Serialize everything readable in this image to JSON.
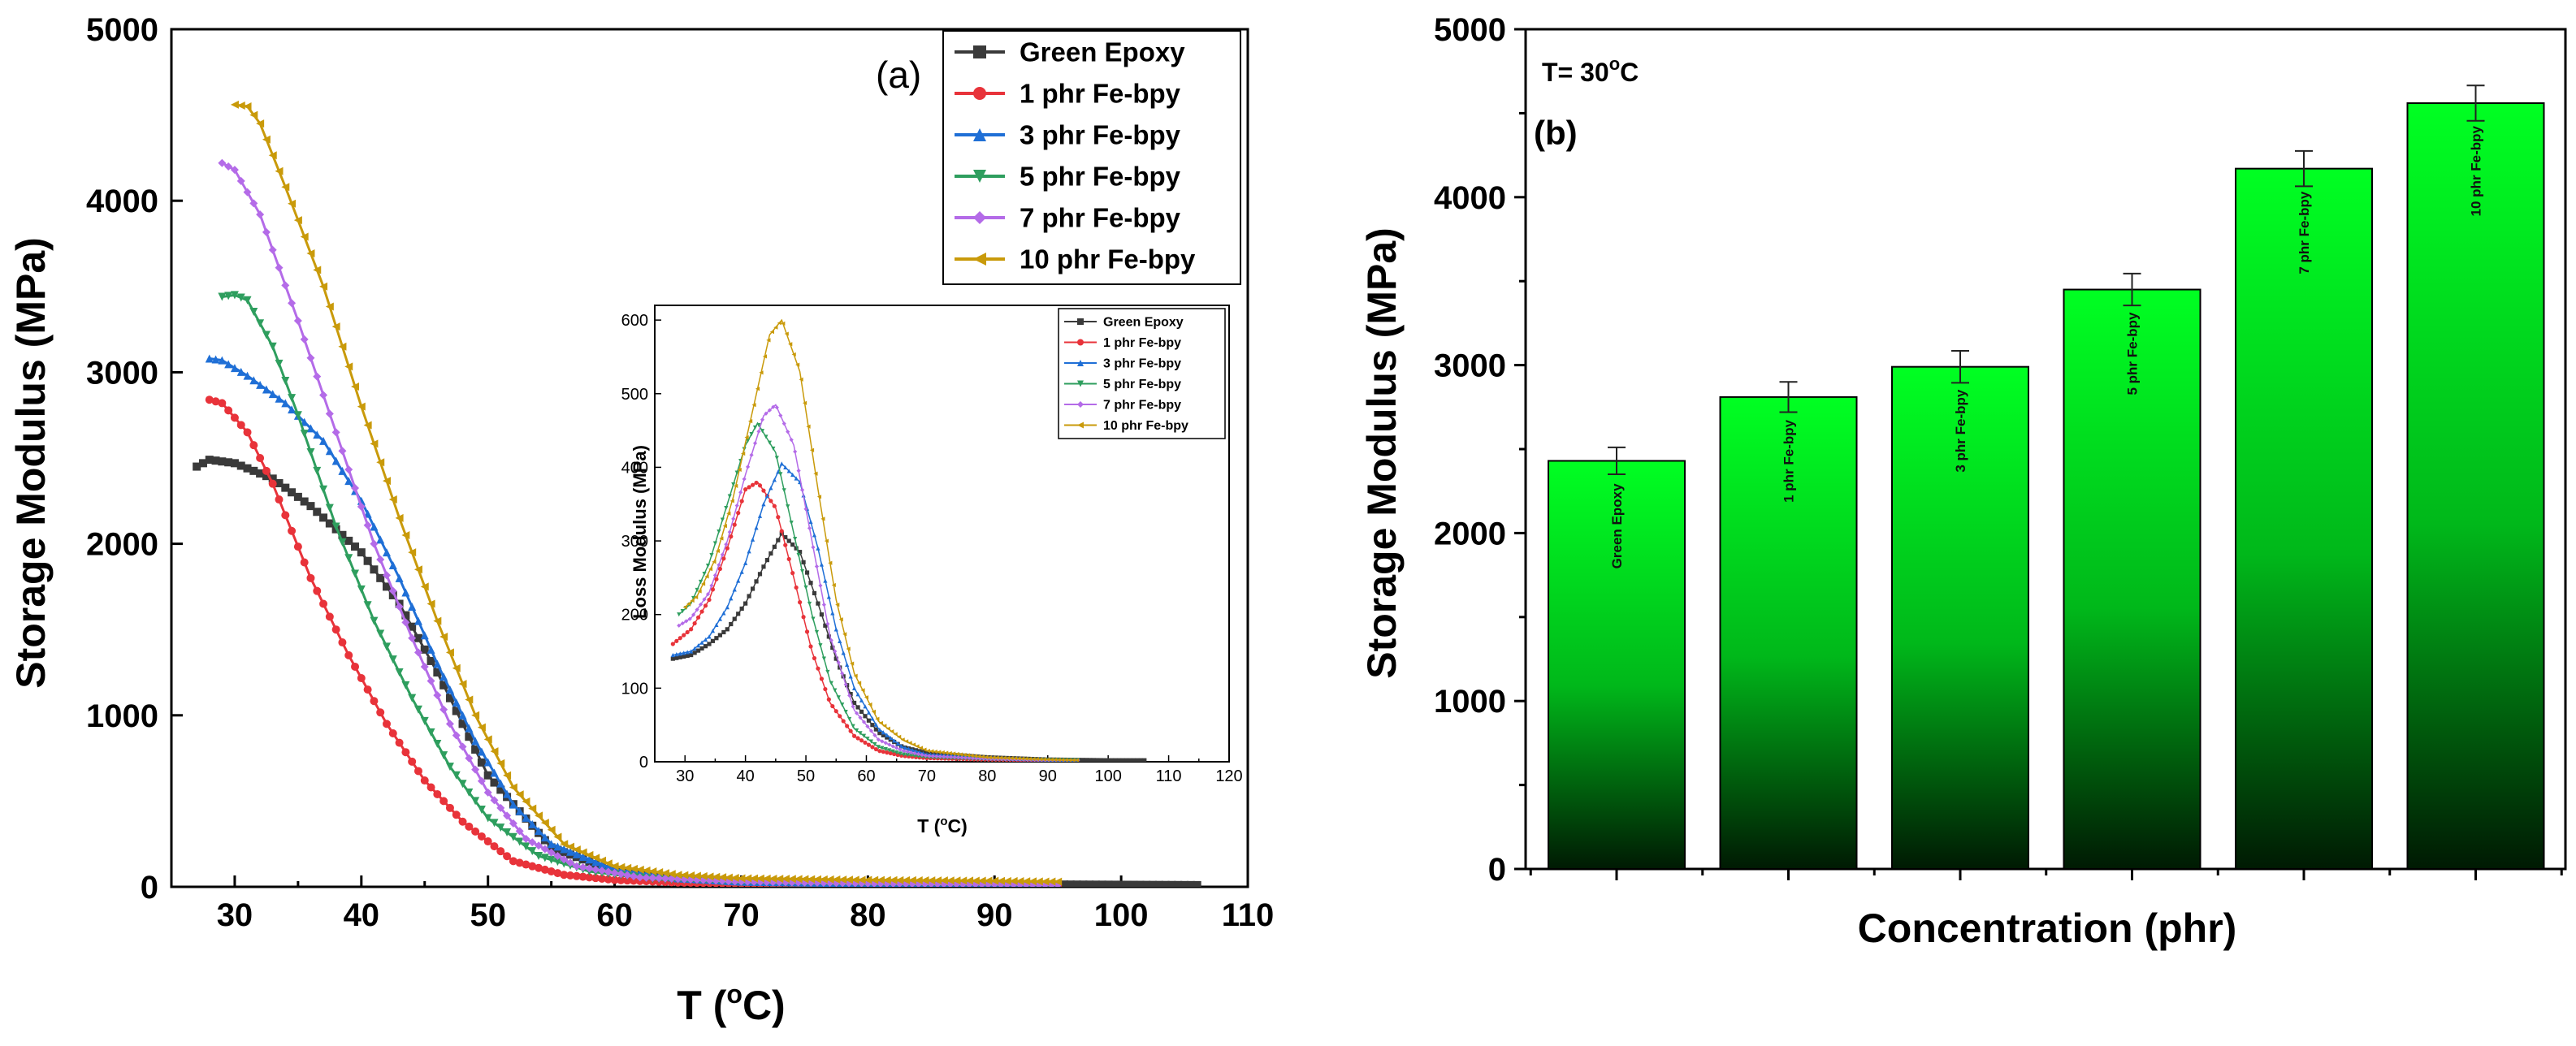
{
  "chart_data": [
    {
      "id": "a",
      "type": "line",
      "panel_label": "(a)",
      "xlabel": "T (",
      "xlabel_unit": "C)",
      "ylabel": "Storage Modulus (MPa)",
      "xlim": [
        25,
        110
      ],
      "ylim": [
        0,
        5000
      ],
      "xticks": [
        30,
        40,
        50,
        60,
        70,
        80,
        90,
        100,
        110
      ],
      "xtick_labels": [
        "30",
        "40",
        "50",
        "60",
        "70",
        "80",
        "90",
        "100",
        "110"
      ],
      "yticks": [
        0,
        1000,
        2000,
        3000,
        4000,
        5000
      ],
      "legend_position": "top-right",
      "series": [
        {
          "name": "Green Epoxy",
          "color": "#3a3a3a",
          "marker": "square",
          "x": [
            27,
            28,
            30,
            33,
            36,
            40,
            43,
            46,
            50,
            55,
            60,
            65,
            70,
            80,
            90,
            100,
            106
          ],
          "y": [
            2450,
            2490,
            2470,
            2380,
            2220,
            1950,
            1650,
            1250,
            650,
            230,
            90,
            45,
            30,
            20,
            15,
            12,
            10
          ]
        },
        {
          "name": "1 phr Fe-bpy",
          "color": "#e8333a",
          "marker": "circle",
          "x": [
            28,
            29,
            31,
            33,
            36,
            39,
            42,
            45,
            48,
            52,
            56,
            60,
            65,
            70,
            80,
            90,
            95
          ],
          "y": [
            2840,
            2820,
            2650,
            2350,
            1800,
            1350,
            950,
            620,
            380,
            150,
            70,
            40,
            25,
            20,
            15,
            12,
            10
          ]
        },
        {
          "name": "3 phr Fe-bpy",
          "color": "#1f6fd6",
          "marker": "triangle-up",
          "x": [
            28,
            29,
            31,
            34,
            37,
            40,
            43,
            46,
            49,
            52,
            55,
            60,
            65,
            70,
            80,
            90,
            95
          ],
          "y": [
            3080,
            3070,
            2980,
            2820,
            2600,
            2250,
            1800,
            1300,
            850,
            480,
            250,
            100,
            50,
            30,
            20,
            15,
            12
          ]
        },
        {
          "name": "5 phr Fe-bpy",
          "color": "#2e9e5e",
          "marker": "triangle-down",
          "x": [
            29,
            30,
            31,
            33,
            35,
            38,
            41,
            44,
            47,
            50,
            54,
            58,
            63,
            70,
            80,
            90,
            95
          ],
          "y": [
            3440,
            3450,
            3420,
            3150,
            2750,
            2100,
            1550,
            1100,
            700,
            400,
            180,
            90,
            45,
            25,
            15,
            12,
            10
          ]
        },
        {
          "name": "7 phr Fe-bpy",
          "color": "#b46be8",
          "marker": "diamond",
          "x": [
            29,
            30,
            32,
            35,
            38,
            41,
            44,
            47,
            50,
            53,
            57,
            62,
            70,
            80,
            90,
            95
          ],
          "y": [
            4220,
            4180,
            3920,
            3300,
            2650,
            2000,
            1450,
            950,
            550,
            280,
            120,
            55,
            30,
            20,
            15,
            12
          ]
        },
        {
          "name": "10 phr Fe-bpy",
          "color": "#c99a0a",
          "marker": "triangle-left",
          "x": [
            30,
            31,
            32,
            34,
            37,
            40,
            43,
            46,
            49,
            52,
            56,
            60,
            65,
            70,
            80,
            90,
            95
          ],
          "y": [
            4560,
            4550,
            4450,
            4080,
            3500,
            2800,
            2150,
            1550,
            1000,
            580,
            250,
            120,
            70,
            50,
            40,
            35,
            30
          ]
        }
      ]
    },
    {
      "id": "a-inset",
      "type": "line",
      "xlabel": "T (",
      "xlabel_unit": "C)",
      "ylabel": "Loss Modulus (MPa)",
      "xlim": [
        25,
        120
      ],
      "ylim": [
        0,
        620
      ],
      "xticks": [
        30,
        40,
        50,
        60,
        70,
        80,
        90,
        100,
        110,
        120
      ],
      "xtick_labels": [
        "30",
        "40",
        "50",
        "60",
        "70",
        "80",
        "90",
        "100",
        "110",
        "120"
      ],
      "yticks": [
        0,
        100,
        200,
        300,
        400,
        500,
        600
      ],
      "legend_position": "top-right",
      "series": [
        {
          "name": "Green Epoxy",
          "color": "#3a3a3a",
          "marker": "square",
          "x": [
            28,
            31,
            34,
            37,
            40,
            43,
            46,
            49,
            52,
            55,
            58,
            62,
            66,
            70,
            80,
            90,
            100,
            106
          ],
          "y": [
            140,
            145,
            160,
            180,
            215,
            265,
            310,
            285,
            215,
            140,
            80,
            40,
            20,
            12,
            6,
            3,
            2,
            2
          ]
        },
        {
          "name": "1 phr Fe-bpy",
          "color": "#e8333a",
          "marker": "circle",
          "x": [
            28,
            31,
            34,
            37,
            40,
            42,
            45,
            48,
            51,
            54,
            58,
            62,
            66,
            70,
            80,
            90,
            95
          ],
          "y": [
            160,
            180,
            220,
            290,
            370,
            380,
            345,
            250,
            150,
            80,
            35,
            15,
            8,
            5,
            3,
            2,
            2
          ]
        },
        {
          "name": "3 phr Fe-bpy",
          "color": "#1f6fd6",
          "marker": "triangle-up",
          "x": [
            28,
            31,
            34,
            37,
            40,
            43,
            46,
            49,
            52,
            55,
            58,
            62,
            66,
            70,
            80,
            90,
            95
          ],
          "y": [
            145,
            150,
            170,
            210,
            270,
            350,
            405,
            380,
            290,
            180,
            100,
            45,
            20,
            10,
            5,
            3,
            2
          ]
        },
        {
          "name": "5 phr Fe-bpy",
          "color": "#2e9e5e",
          "marker": "triangle-down",
          "x": [
            29,
            31,
            34,
            37,
            40,
            42,
            45,
            48,
            51,
            54,
            58,
            62,
            66,
            70,
            80,
            90,
            95
          ],
          "y": [
            200,
            215,
            270,
            350,
            430,
            460,
            420,
            310,
            200,
            110,
            45,
            20,
            10,
            6,
            3,
            2,
            2
          ]
        },
        {
          "name": "7 phr Fe-bpy",
          "color": "#b46be8",
          "marker": "diamond",
          "x": [
            29,
            31,
            34,
            37,
            40,
            43,
            45,
            48,
            51,
            54,
            58,
            62,
            66,
            70,
            80,
            90,
            95
          ],
          "y": [
            185,
            195,
            230,
            300,
            390,
            470,
            485,
            430,
            300,
            170,
            70,
            30,
            15,
            8,
            4,
            2,
            2
          ]
        },
        {
          "name": "10 phr Fe-bpy",
          "color": "#c99a0a",
          "marker": "triangle-left",
          "x": [
            30,
            32,
            35,
            38,
            41,
            44,
            46,
            49,
            52,
            55,
            58,
            62,
            66,
            70,
            80,
            90,
            95
          ],
          "y": [
            210,
            225,
            275,
            360,
            470,
            580,
            600,
            530,
            370,
            220,
            120,
            55,
            30,
            15,
            6,
            3,
            2
          ]
        }
      ]
    },
    {
      "id": "b",
      "type": "bar",
      "panel_label": "(b)",
      "annotation": "T= 30",
      "annotation_unit": "C",
      "xlabel": "Concentration (phr)",
      "ylabel": "Storage Modulus (MPa)",
      "ylim": [
        0,
        5000
      ],
      "yticks": [
        0,
        1000,
        2000,
        3000,
        4000,
        5000
      ],
      "categories": [
        "Green Epoxy",
        "1 phr Fe-bpy",
        "3 phr Fe-bpy",
        "5 phr Fe-bpy",
        "7 phr Fe-bpy",
        "10 phr Fe-bpy"
      ],
      "values": [
        2430,
        2810,
        2990,
        3450,
        4170,
        4560
      ],
      "errors": [
        80,
        90,
        95,
        95,
        105,
        105
      ],
      "bar_color_top": "#00ff22",
      "bar_color_bottom": "#001a03"
    }
  ]
}
